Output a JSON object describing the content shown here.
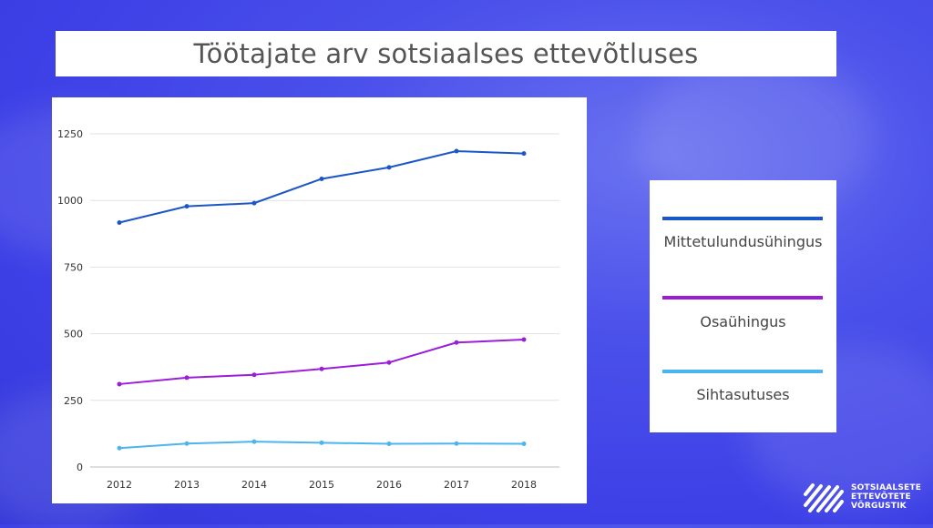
{
  "title": "Töötajate arv sotsiaalses ettevõtluses",
  "chart_data": {
    "type": "line",
    "categories": [
      "2012",
      "2013",
      "2014",
      "2015",
      "2016",
      "2017",
      "2018"
    ],
    "yticks": [
      "0",
      "250",
      "500",
      "750",
      "1000",
      "1250"
    ],
    "ylim": [
      0,
      1250
    ],
    "grid": true,
    "legend_position": "right",
    "series": [
      {
        "name": "Mittetulundusühingus",
        "color": "#1b56c8",
        "values": [
          917,
          978,
          990,
          1081,
          1124,
          1185,
          1176
        ]
      },
      {
        "name": "Osaühingus",
        "color": "#9b1dd9",
        "values": [
          311,
          335,
          346,
          368,
          392,
          467,
          478
        ]
      },
      {
        "name": "Sihtasutuses",
        "color": "#4cb4ee",
        "values": [
          71,
          88,
          95,
          91,
          87,
          88,
          87
        ]
      }
    ]
  },
  "logo": {
    "icon": "social-enterprise-network-logo-icon",
    "lines": [
      "SOTSIAALSETE",
      "ETTEVÕTETE",
      "VÕRGUSTIK"
    ]
  }
}
